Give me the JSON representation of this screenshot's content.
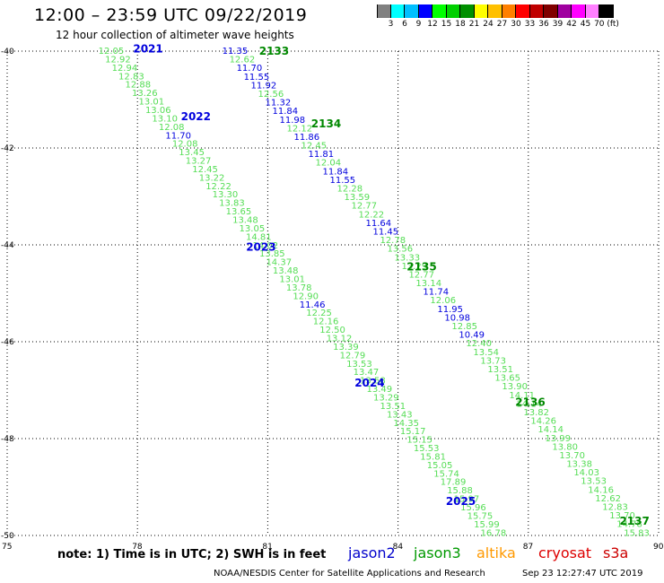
{
  "header": {
    "title": "12:00 – 23:59 UTC 09/22/2019",
    "subtitle": "12 hour collection of altimeter wave heights"
  },
  "colorbar": {
    "colors": [
      "#808080",
      "#00ffff",
      "#00bfff",
      "#0000ff",
      "#00ff00",
      "#00d000",
      "#009000",
      "#ffff00",
      "#ffc000",
      "#ff8000",
      "#ff0000",
      "#c00000",
      "#800000",
      "#a000a0",
      "#ff00ff",
      "#ff80ff",
      "#000000"
    ],
    "labels": [
      "3",
      "6",
      "9",
      "12",
      "15",
      "18",
      "21",
      "24",
      "27",
      "30",
      "33",
      "36",
      "39",
      "42",
      "45",
      "70 (ft)"
    ]
  },
  "axes": {
    "lat_ticks": [
      "-40",
      "-42",
      "-44",
      "-46",
      "-48",
      "-50"
    ],
    "lon_ticks": [
      "75",
      "78",
      "81",
      "84",
      "87",
      "90"
    ]
  },
  "passes": [
    {
      "label": "2021",
      "sat": "jason2",
      "lon": 77.9,
      "lat": -39.95
    },
    {
      "label": "2022",
      "sat": "jason2",
      "lon": 79.0,
      "lat": -41.35
    },
    {
      "label": "2023",
      "sat": "jason2",
      "lon": 80.5,
      "lat": -44.05
    },
    {
      "label": "2024",
      "sat": "jason2",
      "lon": 83.0,
      "lat": -46.85
    },
    {
      "label": "2025",
      "sat": "jason2",
      "lon": 85.1,
      "lat": -49.3
    },
    {
      "label": "2133",
      "sat": "jason3",
      "lon": 80.8,
      "lat": -40.0
    },
    {
      "label": "2134",
      "sat": "jason3",
      "lon": 82.0,
      "lat": -41.5
    },
    {
      "label": "2135",
      "sat": "jason3",
      "lon": 84.2,
      "lat": -44.45
    },
    {
      "label": "2136",
      "sat": "jason3",
      "lon": 86.7,
      "lat": -47.25
    },
    {
      "label": "2137",
      "sat": "jason3",
      "lon": 89.1,
      "lat": -49.7
    }
  ],
  "tracks": [
    {
      "values": [
        "12.05",
        "12.92",
        "12.94",
        "12.83",
        "12.88",
        "13.26",
        "13.01",
        "13.06",
        "13.10",
        "12.08",
        "11.70",
        "12.08",
        "13.45",
        "13.27",
        "12.45",
        "13.22",
        "12.22",
        "13.30",
        "13.83",
        "13.65",
        "13.48",
        "13.05",
        "14.81",
        "14.02",
        "13.85",
        "14.37",
        "13.48",
        "13.01",
        "13.78",
        "12.90",
        "11.46",
        "12.25",
        "12.16",
        "12.50",
        "13.12",
        "13.39",
        "12.79",
        "13.53",
        "13.47",
        "13.58",
        "13.49",
        "13.29",
        "13.51",
        "13.43",
        "14.35",
        "15.17",
        "15.15",
        "15.53",
        "15.81",
        "15.05",
        "15.74",
        "17.89",
        "15.88",
        "15.97",
        "15.96",
        "15.75",
        "15.99",
        "16.78"
      ],
      "sats": [
        "jason3",
        "jason3",
        "jason3",
        "jason3",
        "jason3",
        "jason3",
        "jason3",
        "jason3",
        "jason3",
        "jason3",
        "jason2",
        "jason3",
        "jason3",
        "jason3",
        "jason3",
        "jason3",
        "jason3",
        "jason3",
        "jason3",
        "jason3",
        "jason3",
        "jason3",
        "jason3",
        "jason3",
        "jason3",
        "jason3",
        "jason3",
        "jason3",
        "jason3",
        "jason3",
        "jason2",
        "jason3",
        "jason3",
        "jason3",
        "jason3",
        "jason3",
        "jason3",
        "jason3",
        "jason3",
        "jason3",
        "jason3",
        "jason3",
        "jason3",
        "jason3",
        "jason3",
        "jason3",
        "jason3",
        "jason3",
        "jason3",
        "jason3",
        "jason3",
        "jason3",
        "jason3",
        "jason3",
        "jason3",
        "jason3",
        "jason3",
        "jason3"
      ]
    },
    {
      "values": [
        "11.35",
        "12.62",
        "11.70",
        "11.55",
        "11.92",
        "12.56",
        "11.32",
        "11.84",
        "11.98",
        "12.12",
        "11.86",
        "12.45",
        "11.81",
        "12.04",
        "11.84",
        "11.55",
        "12.28",
        "13.59",
        "12.77",
        "12.22",
        "11.64",
        "11.45",
        "12.78",
        "13.56",
        "13.33",
        "13.29",
        "12.77",
        "13.14",
        "11.74",
        "12.06",
        "11.95",
        "10.98",
        "12.85",
        "10.49",
        "12.40",
        "13.54",
        "13.73",
        "13.51",
        "13.65",
        "13.90",
        "14.11",
        "14.14",
        "13.82",
        "14.26",
        "14.14",
        "13.99",
        "13.80",
        "13.70",
        "13.38",
        "14.03",
        "13.53",
        "14.16",
        "12.62",
        "12.83",
        "13.70",
        "14.78",
        "15.83"
      ],
      "sats": [
        "jason2",
        "jason3",
        "jason2",
        "jason2",
        "jason2",
        "jason3",
        "jason2",
        "jason2",
        "jason2",
        "jason3",
        "jason2",
        "jason3",
        "jason2",
        "jason3",
        "jason2",
        "jason2",
        "jason3",
        "jason3",
        "jason3",
        "jason3",
        "jason2",
        "jason2",
        "jason3",
        "jason3",
        "jason3",
        "jason3",
        "jason3",
        "jason3",
        "jason2",
        "jason3",
        "jason2",
        "jason2",
        "jason3",
        "jason2",
        "jason3",
        "jason3",
        "jason3",
        "jason3",
        "jason3",
        "jason3",
        "jason3",
        "jason3",
        "jason3",
        "jason3",
        "jason3",
        "jason3",
        "jason3",
        "jason3",
        "jason3",
        "jason3",
        "jason3",
        "jason3",
        "jason3",
        "jason3",
        "jason3",
        "jason3",
        "jason3"
      ]
    }
  ],
  "legend": {
    "note": "note: 1) Time is in UTC; 2) SWH is in feet",
    "satellites": [
      {
        "name": "jason2",
        "color": "#0000cc"
      },
      {
        "name": "jason3",
        "color": "#009900"
      },
      {
        "name": "altika",
        "color": "#ff9900"
      },
      {
        "name": "cryosat",
        "color": "#dd0000"
      },
      {
        "name": "s3a",
        "color": "#cc0000"
      }
    ],
    "credit": "NOAA/NESDIS Center for Satellite Applications and Research",
    "timestamp": "Sep 23 12:27:47 UTC 2019"
  },
  "colors": {
    "jason2": "#0000dd",
    "jason3_pass": "#008800",
    "jason3_value": "#55dd55"
  }
}
